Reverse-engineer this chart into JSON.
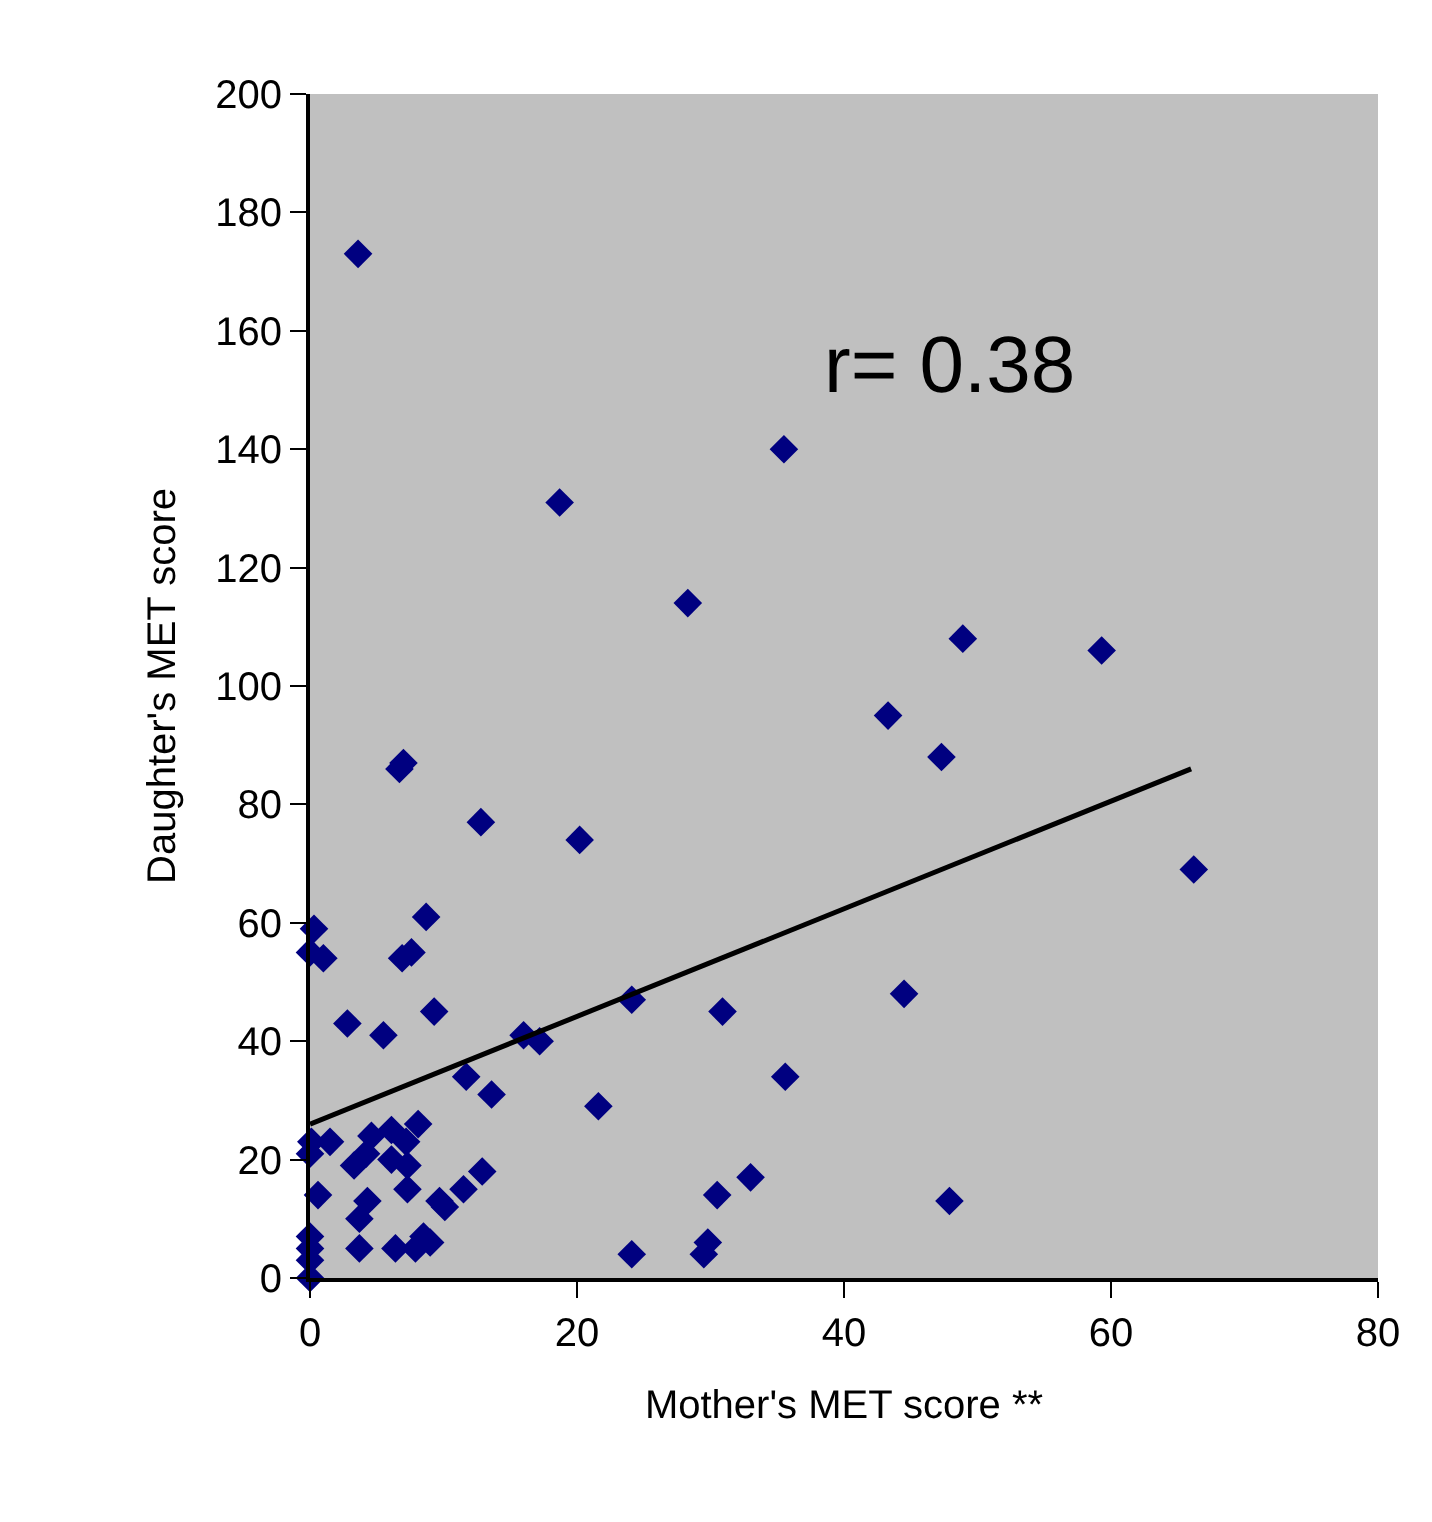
{
  "chart_data": {
    "type": "scatter",
    "xlabel": "Mother's MET score **",
    "ylabel": "Daughter's MET score",
    "annotations": [
      "r= 0.38"
    ],
    "grid": false,
    "xlim": [
      0,
      80
    ],
    "xticks": [
      0,
      20,
      40,
      60,
      80
    ],
    "ylim": [
      0,
      200
    ],
    "yticks": [
      0,
      20,
      40,
      60,
      80,
      100,
      120,
      140,
      160,
      180,
      200
    ],
    "series": [
      {
        "marker": "diamond",
        "color": "#000080",
        "x": [
          3.6,
          18.7,
          35.5,
          28.3,
          48.9,
          59.3,
          43.3,
          47.3,
          7.0,
          6.7,
          12.8,
          20.2,
          66.2,
          8.7,
          0.3,
          0,
          1.0,
          6.9,
          7.6,
          9.3,
          30.9,
          44.5,
          24.1,
          2.8,
          5.5,
          16.0,
          17.2,
          11.7,
          13.6,
          21.6,
          35.6,
          33.0,
          30.5,
          47.9,
          24.1,
          29.5,
          29.8,
          8.1,
          0.1,
          1.5,
          0,
          4.6,
          6.1,
          7.2,
          4.2,
          3.3,
          6.1,
          7.3,
          0.6,
          4.3,
          12.9,
          11.5,
          7.3,
          9.7,
          10.1,
          3.7,
          0,
          0,
          0,
          0,
          3.7,
          6.4,
          7.9,
          8.5,
          9.0
        ],
        "values": [
          173,
          131,
          140,
          114,
          108,
          106,
          95,
          88,
          87,
          86,
          77,
          74,
          69,
          61,
          59,
          55,
          54,
          54,
          55,
          45,
          45,
          48,
          47,
          43,
          41,
          41,
          40,
          34,
          31,
          29,
          34,
          17,
          14,
          13,
          4,
          4,
          6,
          26,
          23,
          23,
          21,
          24,
          25,
          23,
          21,
          19,
          20,
          19,
          14,
          13,
          18,
          15,
          15,
          13,
          12,
          10,
          7,
          5,
          3,
          0,
          5,
          5,
          5,
          7,
          6
        ]
      },
      {
        "type": "line",
        "marker": "none",
        "color": "#000000",
        "x": [
          0,
          66
        ],
        "values": [
          26,
          86
        ]
      }
    ]
  }
}
